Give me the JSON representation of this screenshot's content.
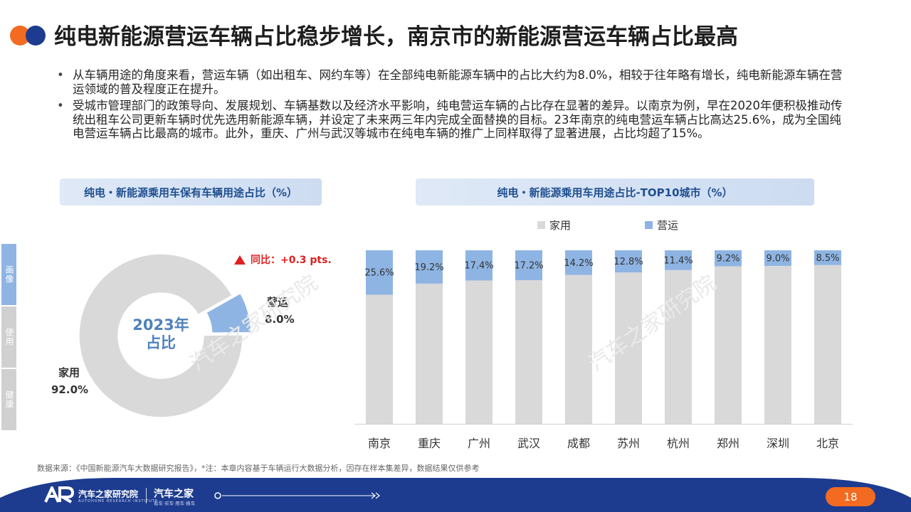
{
  "title": "纯电新能源营运车辆占比稳步增长，南京市的新能源营运车辆占比最高",
  "bullets": [
    "从车辆用途的角度来看，营运车辆（如出租车、网约车等）在全部纯电新能源车辆中的占比大约为8.0%，相较于往年略有增长，纯电新能源车辆在营运领域的普及程度正在提升。",
    "受城市管理部门的政策导向、发展规划、车辆基数以及经济水平影响，纯电营运车辆的占比存在显著的差异。以南京为例，早在2020年便积极推动传统出租车公司更新车辆时优先选用新能源车辆，并设定了未来两三年内完成全面替换的目标。23年南京的纯电营运车辆占比高达25.6%，成为全国纯电营运车辆占比最高的城市。此外，重庆、广州与武汉等城市在纯电车辆的推广上同样取得了显著进展，占比均超了15%。"
  ],
  "left_header": "纯电・新能源乘用车保有车辆用途占比（%）",
  "right_header": "纯电・新能源乘用车用途占比-TOP10城市（%）",
  "side_tabs": [
    "画像",
    "使用",
    "健康"
  ],
  "donut": {
    "center_line1": "2023年",
    "center_line2": "占比",
    "change_text": "同比：+0.3 pts.",
    "home_label": "家用",
    "home_value": "92.0%",
    "ops_label": "营运",
    "ops_value": "8.0%"
  },
  "legend": {
    "home": "家用",
    "ops": "营运"
  },
  "colors": {
    "home": "#d9d9d9",
    "ops": "#8eb4e3",
    "accent_blue": "#4f81bd",
    "orange": "#f26b21",
    "navy": "#1d3c8f",
    "red": "#e02020"
  },
  "chart_data": [
    {
      "type": "pie",
      "title": "纯电・新能源乘用车保有车辆用途占比（%）",
      "categories": [
        "家用",
        "营运"
      ],
      "values": [
        92.0,
        8.0
      ]
    },
    {
      "type": "bar",
      "stacked": true,
      "title": "纯电・新能源乘用车用途占比-TOP10城市（%）",
      "categories": [
        "南京",
        "重庆",
        "广州",
        "武汉",
        "成都",
        "苏州",
        "杭州",
        "郑州",
        "深圳",
        "北京"
      ],
      "series": [
        {
          "name": "家用",
          "values": [
            74.4,
            80.8,
            82.6,
            82.8,
            85.8,
            87.2,
            88.6,
            90.8,
            91.0,
            91.5
          ]
        },
        {
          "name": "营运",
          "values": [
            25.6,
            19.2,
            17.4,
            17.2,
            14.2,
            12.8,
            11.4,
            9.2,
            9.0,
            8.5
          ]
        }
      ],
      "data_labels": [
        "25.6%",
        "19.2%",
        "17.4%",
        "17.2%",
        "14.2%",
        "12.8%",
        "11.4%",
        "9.2%",
        "9.0%",
        "8.5%"
      ],
      "ylim": [
        0,
        100
      ],
      "legend": "top"
    }
  ],
  "footnote": "数据来源：《中国新能源汽车大数据研究报告》，*注：本章内容基于车辆运行大数据分析，因存在样本集差异，数据结果仅供参考",
  "footer": {
    "brand_name": "汽车之家研究院",
    "brand_sub": "AUTOHOME RESEARCH INSTITUTE",
    "brand2_name": "汽车之家",
    "brand2_sub": "看车·买车·用车·换车",
    "page_number": "18"
  }
}
